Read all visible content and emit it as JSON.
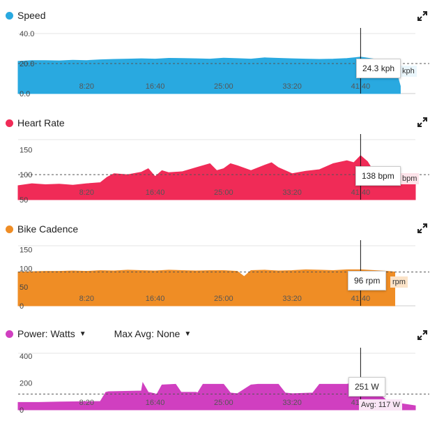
{
  "panels": [
    {
      "title": "Speed",
      "color": "#29a9e0",
      "expand_icon": "expand-icon",
      "tooltip": "24.3 kph",
      "unit_tag": "kph",
      "avg_label": ""
    },
    {
      "title": "Heart Rate",
      "color": "#f02b57",
      "expand_icon": "expand-icon",
      "tooltip": "138 bpm",
      "unit_tag": "bpm",
      "avg_label": ""
    },
    {
      "title": "Bike Cadence",
      "color": "#ef8d25",
      "expand_icon": "expand-icon",
      "tooltip": "96 rpm",
      "unit_tag": "rpm",
      "avg_label": ""
    },
    {
      "title": "Power: Watts",
      "max_avg": "Max Avg: None",
      "color": "#d03fc0",
      "expand_icon": "expand-icon",
      "tooltip": "251 W",
      "unit_tag": "",
      "avg_label": "Avg: 117 W"
    }
  ],
  "chart_data": [
    {
      "type": "area",
      "title": "Speed",
      "xlabel": "",
      "ylabel": "",
      "x_ticks": [
        "8:20",
        "16:40",
        "25:00",
        "33:20",
        "41:40"
      ],
      "y_ticks": [
        "0.0",
        "20.0",
        "40.0"
      ],
      "ylim": [
        0,
        40
      ],
      "xlim": [
        0,
        2900
      ],
      "avg_line": 20,
      "cursor_x": 2500,
      "x": [
        0,
        100,
        200,
        300,
        400,
        500,
        600,
        700,
        800,
        900,
        1000,
        1100,
        1200,
        1300,
        1400,
        1500,
        1600,
        1700,
        1800,
        1900,
        2000,
        2100,
        2200,
        2300,
        2400,
        2500,
        2600,
        2700,
        2750,
        2790
      ],
      "series": [
        {
          "values": [
            21.5,
            22.0,
            22.0,
            21.8,
            22.2,
            22.0,
            22.5,
            22.8,
            23.0,
            23.2,
            23.0,
            23.5,
            23.4,
            23.2,
            23.0,
            23.6,
            23.3,
            23.0,
            23.8,
            23.5,
            23.2,
            23.0,
            22.8,
            23.0,
            23.4,
            24.3,
            23.0,
            22.0,
            18.0,
            5.0
          ]
        }
      ]
    },
    {
      "type": "area",
      "title": "Heart Rate",
      "xlabel": "",
      "ylabel": "",
      "x_ticks": [
        "8:20",
        "16:40",
        "25:00",
        "33:20",
        "41:40"
      ],
      "y_ticks": [
        "50",
        "100",
        "150"
      ],
      "ylim": [
        50,
        170
      ],
      "xlim": [
        0,
        2900
      ],
      "avg_line": 100,
      "cursor_x": 2500,
      "x": [
        0,
        100,
        200,
        300,
        400,
        500,
        600,
        650,
        700,
        800,
        900,
        950,
        1000,
        1050,
        1100,
        1200,
        1300,
        1400,
        1450,
        1500,
        1550,
        1600,
        1700,
        1800,
        1850,
        1900,
        2000,
        2100,
        2200,
        2300,
        2400,
        2450,
        2500,
        2550,
        2600,
        2700,
        2800,
        2900
      ],
      "series": [
        {
          "values": [
            78,
            82,
            80,
            81,
            79,
            82,
            84,
            95,
            102,
            100,
            105,
            112,
            96,
            108,
            104,
            106,
            114,
            122,
            108,
            112,
            122,
            118,
            108,
            119,
            124,
            114,
            102,
            107,
            110,
            122,
            128,
            124,
            138,
            126,
            104,
            96,
            88,
            82
          ]
        }
      ]
    },
    {
      "type": "area",
      "title": "Bike Cadence",
      "xlabel": "",
      "ylabel": "",
      "x_ticks": [
        "8:20",
        "16:40",
        "25:00",
        "33:20",
        "41:40"
      ],
      "y_ticks": [
        "0",
        "50",
        "100",
        "150"
      ],
      "ylim": [
        0,
        160
      ],
      "xlim": [
        0,
        2900
      ],
      "avg_line": 90,
      "cursor_x": 2500,
      "x": [
        0,
        100,
        200,
        300,
        400,
        500,
        600,
        700,
        800,
        900,
        1000,
        1100,
        1200,
        1300,
        1400,
        1500,
        1600,
        1650,
        1700,
        1800,
        1900,
        2000,
        2100,
        2200,
        2300,
        2400,
        2500,
        2600,
        2700,
        2750
      ],
      "series": [
        {
          "values": [
            90,
            91,
            92,
            92,
            93,
            92,
            94,
            93,
            95,
            94,
            93,
            95,
            94,
            93,
            94,
            94,
            92,
            78,
            94,
            95,
            93,
            94,
            96,
            95,
            94,
            96,
            96,
            94,
            92,
            90
          ]
        }
      ]
    },
    {
      "type": "area",
      "title": "Power: Watts",
      "xlabel": "",
      "ylabel": "",
      "x_ticks": [
        "8:20",
        "16:40",
        "25:00",
        "33:20",
        "41:40"
      ],
      "y_ticks": [
        "0",
        "200",
        "400"
      ],
      "ylim": [
        0,
        420
      ],
      "xlim": [
        0,
        2900
      ],
      "avg_line": 117,
      "cursor_x": 2500,
      "x": [
        0,
        150,
        300,
        450,
        600,
        640,
        660,
        900,
        910,
        950,
        1000,
        1010,
        1050,
        1150,
        1190,
        1300,
        1310,
        1350,
        1500,
        1550,
        1600,
        1700,
        1750,
        1900,
        1950,
        2000,
        2150,
        2200,
        2300,
        2400,
        2450,
        2500,
        2600,
        2700,
        2800,
        2900
      ],
      "series": [
        {
          "values": [
            55,
            55,
            58,
            60,
            62,
            130,
            135,
            140,
            200,
            130,
            120,
            110,
            185,
            190,
            130,
            130,
            125,
            190,
            190,
            125,
            120,
            185,
            190,
            190,
            125,
            120,
            125,
            190,
            190,
            190,
            200,
            200,
            150,
            60,
            45,
            30
          ]
        }
      ]
    }
  ]
}
